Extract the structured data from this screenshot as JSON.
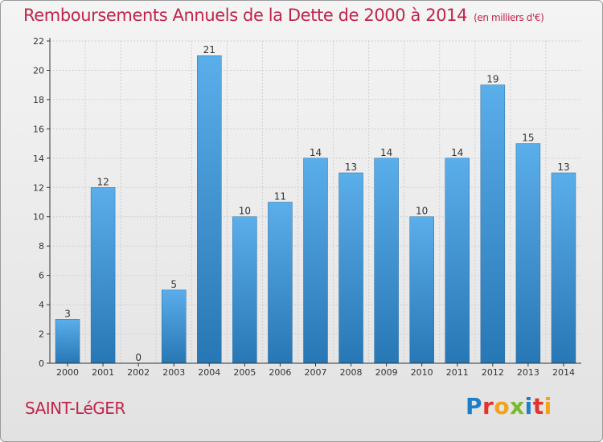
{
  "title": "Remboursements Annuels de la Dette de 2000 à 2014",
  "unit": "(en milliers d'€)",
  "commune": "SAINT-LéGER",
  "logo": {
    "text": "Proxiti",
    "letter_colors": [
      "#1e7fc9",
      "#e2342b",
      "#f2a21b",
      "#7ab929",
      "#1e7fc9",
      "#e2342b",
      "#f2a21b"
    ]
  },
  "colors": {
    "title": "#c0254a",
    "bar_light": "#5aaeea",
    "bar_dark": "#2877b5",
    "grid": "#cfcfcf",
    "axis": "#333333"
  },
  "chart_data": {
    "type": "bar",
    "title": "Remboursements Annuels de la Dette de 2000 à 2014",
    "xlabel": "",
    "ylabel": "",
    "categories": [
      "2000",
      "2001",
      "2002",
      "2003",
      "2004",
      "2005",
      "2006",
      "2007",
      "2008",
      "2009",
      "2010",
      "2011",
      "2012",
      "2013",
      "2014"
    ],
    "values": [
      3,
      12,
      0,
      5,
      21,
      10,
      11,
      14,
      13,
      14,
      10,
      14,
      19,
      15,
      13
    ],
    "ylim": [
      0,
      22
    ],
    "yticks": [
      0,
      2,
      4,
      6,
      8,
      10,
      12,
      14,
      16,
      18,
      20,
      22
    ],
    "grid": true
  }
}
